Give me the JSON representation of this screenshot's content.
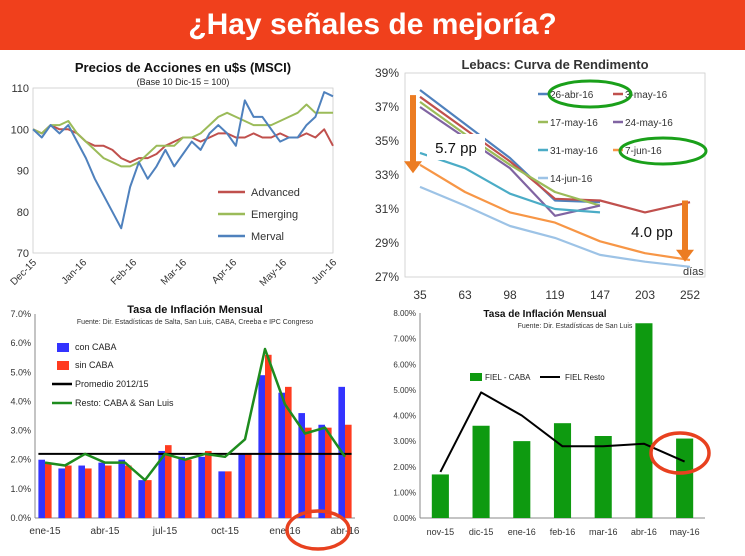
{
  "banner": {
    "title": "¿Hay señales de mejoría?",
    "color": "#f0401c"
  },
  "chart_data": [
    {
      "type": "line",
      "title": "Precios de Acciones en u$s (MSCI)",
      "subtitle": "(Base 10 Dic-15 = 100)",
      "x_ticks": [
        "Dec-15",
        "Jan-16",
        "Feb-16",
        "Mar-16",
        "Apr-16",
        "May-16",
        "Jun-16"
      ],
      "ylim": [
        70,
        110
      ],
      "y_ticks": [
        70,
        80,
        90,
        100,
        110
      ],
      "legend_position": "lower-right",
      "series": [
        {
          "name": "Advanced",
          "color": "#c0504d",
          "values": [
            100,
            99,
            101,
            100,
            100,
            99,
            97,
            96,
            96,
            95,
            93,
            92,
            93,
            93,
            94,
            96,
            97,
            98,
            98,
            97,
            98,
            99,
            99,
            98,
            98,
            99,
            98,
            98,
            99,
            98,
            98,
            99,
            98,
            100,
            96
          ]
        },
        {
          "name": "Emerging",
          "color": "#9bbb59",
          "values": [
            100,
            99,
            101,
            101,
            102,
            99,
            97,
            95,
            93,
            92,
            91,
            91,
            92,
            94,
            96,
            96,
            96,
            98,
            98,
            99,
            101,
            103,
            104,
            103,
            102,
            101,
            101,
            101,
            102,
            103,
            104,
            106,
            104,
            104,
            104
          ]
        },
        {
          "name": "Merval",
          "color": "#4f81bd",
          "values": [
            100,
            98,
            101,
            99,
            101,
            97,
            93,
            88,
            84,
            80,
            76,
            86,
            92,
            88,
            91,
            95,
            91,
            94,
            97,
            95,
            99,
            101,
            99,
            96,
            107,
            103,
            103,
            100,
            97,
            98,
            98,
            101,
            103,
            109,
            108
          ]
        }
      ]
    },
    {
      "type": "line",
      "title": "Lebacs: Curva de Rendimento",
      "categories": [
        "35",
        "63",
        "98",
        "119",
        "147",
        "203",
        "252"
      ],
      "ylim": [
        27,
        39
      ],
      "y_ticks": [
        "27%",
        "29%",
        "31%",
        "33%",
        "35%",
        "37%",
        "39%"
      ],
      "x_unit": "días",
      "annotations": [
        "5.7 pp",
        "4.0 pp"
      ],
      "series": [
        {
          "name": "26-abr-16",
          "color": "#4f81bd",
          "values": [
            38.0,
            36.0,
            34.0,
            31.5,
            31.4,
            null,
            null
          ]
        },
        {
          "name": "3-may-16",
          "color": "#c0504d",
          "values": [
            37.6,
            35.7,
            33.8,
            31.6,
            31.5,
            30.8,
            31.4
          ]
        },
        {
          "name": "17-may-16",
          "color": "#9bbb59",
          "values": [
            37.3,
            35.4,
            33.6,
            32.0,
            31.2,
            null,
            null
          ]
        },
        {
          "name": "24-may-16",
          "color": "#8064a2",
          "values": [
            37.0,
            35.2,
            33.4,
            30.6,
            31.2,
            null,
            null
          ]
        },
        {
          "name": "31-may-16",
          "color": "#4bacc6",
          "values": [
            34.3,
            33.4,
            31.9,
            31.0,
            30.8,
            null,
            null
          ]
        },
        {
          "name": "7-jun-16",
          "color": "#f79646",
          "values": [
            33.6,
            32.0,
            30.8,
            30.2,
            29.1,
            28.4,
            28.0
          ]
        },
        {
          "name": "14-jun-16",
          "color": "#9dc3e6",
          "values": [
            32.3,
            31.2,
            30.0,
            29.3,
            28.3,
            27.9,
            27.6
          ]
        }
      ]
    },
    {
      "type": "bar",
      "title": "Tasa de Inflación Mensual",
      "subtitle": "Fuente: Dir. Estadísticas de Salta, San Luis, CABA, Creeba e IPC Congreso",
      "categories": [
        "ene-15",
        "feb-15",
        "mar-15",
        "abr-15",
        "may-15",
        "jun-15",
        "jul-15",
        "ago-15",
        "sep-15",
        "oct-15",
        "nov-15",
        "dic-15",
        "ene-16",
        "feb-16",
        "mar-16",
        "abr-16"
      ],
      "x_ticks": [
        "ene-15",
        "abr-15",
        "jul-15",
        "oct-15",
        "ene-16",
        "abr-16"
      ],
      "ylim": [
        0,
        7
      ],
      "y_ticks": [
        "0.0%",
        "1.0%",
        "2.0%",
        "3.0%",
        "4.0%",
        "5.0%",
        "6.0%",
        "7.0%"
      ],
      "series": [
        {
          "name": "con CABA",
          "color": "#3333ff",
          "values": [
            2.0,
            1.7,
            1.8,
            1.9,
            2.0,
            1.3,
            2.3,
            2.1,
            2.1,
            1.6,
            2.2,
            4.9,
            4.3,
            3.6,
            3.2,
            4.5
          ]
        },
        {
          "name": "sin CABA",
          "color": "#ff3b1f",
          "values": [
            1.9,
            1.8,
            1.7,
            1.8,
            1.8,
            1.3,
            2.5,
            2.0,
            2.3,
            1.6,
            2.2,
            5.6,
            4.5,
            3.1,
            3.1,
            3.2
          ]
        },
        {
          "name": "Promedio 2012/15",
          "color": "#000000",
          "value": 2.2
        },
        {
          "name": "Resto: CABA & San Luis",
          "color": "#1e8c1e",
          "values": [
            1.9,
            1.8,
            2.2,
            1.9,
            1.9,
            1.3,
            2.2,
            2.0,
            2.2,
            2.1,
            2.7,
            5.8,
            3.9,
            2.9,
            3.1,
            2.1
          ]
        }
      ]
    },
    {
      "type": "bar",
      "title": "Tasa de Inflación Mensual",
      "subtitle": "Fuente: Dir. Estadísticas de San Luis",
      "categories": [
        "nov-15",
        "dic-15",
        "ene-16",
        "feb-16",
        "mar-16",
        "abr-16",
        "may-16"
      ],
      "ylim": [
        0,
        8
      ],
      "y_ticks": [
        "0.00%",
        "1.00%",
        "2.00%",
        "3.00%",
        "4.00%",
        "5.00%",
        "6.00%",
        "7.00%",
        "8.00%"
      ],
      "series": [
        {
          "name": "FIEL - CABA",
          "color": "#0e9a10",
          "values": [
            1.7,
            3.6,
            3.0,
            3.7,
            3.2,
            7.6,
            3.1
          ]
        },
        {
          "name": "FIEL Resto",
          "color": "#000000",
          "values": [
            1.8,
            4.9,
            4.0,
            2.8,
            2.8,
            2.9,
            2.2
          ]
        }
      ]
    }
  ]
}
